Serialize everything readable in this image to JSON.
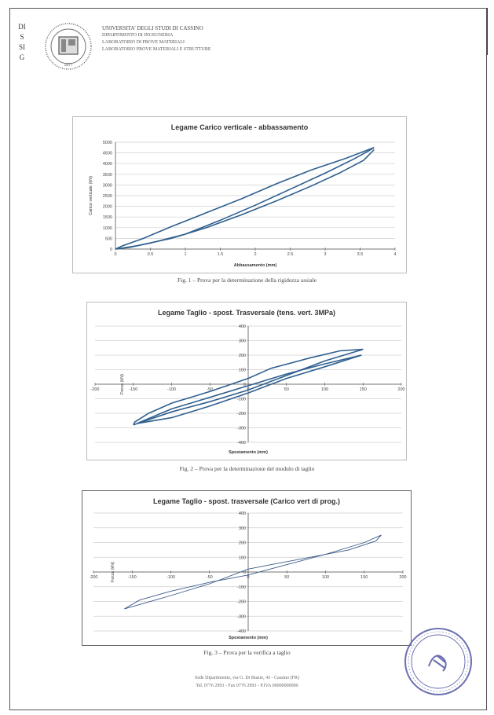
{
  "header": {
    "side_letters": [
      "DI",
      "S",
      "SI",
      "G"
    ],
    "logo_year": "1877",
    "lines": [
      "UNIVERSITA' DEGLI STUDI DI CASSINO",
      "DIPARTIMENTO DI INGEGNERIA",
      "LABORATORIO DI PROVE MATERIALI",
      "LABORATORIO PROVE MATERIALI E STRUTTURE"
    ]
  },
  "charts": [
    {
      "title": "Legame Carico verticale - abbassamento",
      "caption": "Fig. 1 – Prova per la determinazione della rigidezza assiale",
      "xlabel": "Abbassamento (mm)",
      "ylabel": "Carico verticale (kN)"
    },
    {
      "title": "Legame Taglio - spost. Trasversale (tens. vert. 3MPa)",
      "caption": "Fig. 2 – Prova per la determinazione del modulo di taglio",
      "xlabel": "Spostamento (mm)",
      "ylabel": "Forza (kN)"
    },
    {
      "title": "Legame Taglio - spost. trasversale (Carico vert di prog.)",
      "caption": "Fig. 3 – Prova per la verifica a taglio",
      "xlabel": "Spostamento (mm)",
      "ylabel": "Forza (kN)"
    }
  ],
  "footer": {
    "line1": "Sede Dipartimento, via G. Di Biasio, 43 - Cassino (FR)",
    "line2": "Tel. 0776 2993 - Fax 0776 2993 - P.IVA 00000000000"
  },
  "chart_data": [
    {
      "type": "line",
      "title": "Legame Carico verticale - abbassamento",
      "xlabel": "Abbassamento (mm)",
      "ylabel": "Carico verticale (kN)",
      "xlim": [
        0,
        4
      ],
      "ylim": [
        0,
        5000
      ],
      "xticks": [
        "0",
        "0.5",
        "1",
        "1.5",
        "2",
        "2.5",
        "3",
        "3.5",
        "4"
      ],
      "yticks": [
        "0",
        "500",
        "1000",
        "1500",
        "2000",
        "2500",
        "3000",
        "3500",
        "4000",
        "4500",
        "5000"
      ],
      "grid": true,
      "series": [
        {
          "values": [
            [
              0,
              0
            ],
            [
              0.2,
              80
            ],
            [
              0.5,
              280
            ],
            [
              1.0,
              700
            ],
            [
              1.5,
              1350
            ],
            [
              2.0,
              2050
            ],
            [
              2.5,
              2800
            ],
            [
              3.0,
              3550
            ],
            [
              3.4,
              4200
            ],
            [
              3.6,
              4550
            ],
            [
              3.7,
              4750
            ]
          ]
        },
        {
          "values": [
            [
              3.7,
              4750
            ],
            [
              3.3,
              4250
            ],
            [
              2.8,
              3700
            ],
            [
              2.3,
              3050
            ],
            [
              1.8,
              2350
            ],
            [
              1.3,
              1700
            ],
            [
              0.8,
              1050
            ],
            [
              0.4,
              500
            ],
            [
              0.1,
              150
            ],
            [
              0,
              0
            ]
          ]
        },
        {
          "values": [
            [
              0,
              0
            ],
            [
              0.3,
              150
            ],
            [
              0.8,
              500
            ],
            [
              1.3,
              1000
            ],
            [
              1.8,
              1600
            ],
            [
              2.3,
              2250
            ],
            [
              2.8,
              2950
            ],
            [
              3.2,
              3550
            ],
            [
              3.55,
              4150
            ],
            [
              3.7,
              4650
            ]
          ]
        }
      ]
    },
    {
      "type": "line",
      "title": "Legame Taglio - spost. Trasversale (tens. vert. 3MPa)",
      "xlabel": "Spostamento (mm)",
      "ylabel": "Forza (kN)",
      "xlim": [
        -200,
        200
      ],
      "ylim": [
        -400,
        400
      ],
      "xticks": [
        "-200",
        "-150",
        "-100",
        "-50",
        "0",
        "50",
        "100",
        "150",
        "200"
      ],
      "yticks": [
        "-400",
        "-300",
        "-200",
        "-100",
        "0",
        "100",
        "200",
        "300",
        "400"
      ],
      "grid": true,
      "series": [
        {
          "values": [
            [
              -150,
              -280
            ],
            [
              -100,
              -190
            ],
            [
              -50,
              -120
            ],
            [
              0,
              -40
            ],
            [
              50,
              60
            ],
            [
              100,
              160
            ],
            [
              150,
              240
            ]
          ]
        },
        {
          "values": [
            [
              150,
              240
            ],
            [
              120,
              230
            ],
            [
              80,
              180
            ],
            [
              30,
              110
            ],
            [
              0,
              40
            ],
            [
              -50,
              -50
            ],
            [
              -100,
              -130
            ],
            [
              -130,
              -200
            ],
            [
              -148,
              -260
            ],
            [
              -150,
              -280
            ]
          ]
        },
        {
          "values": [
            [
              -145,
              -270
            ],
            [
              -100,
              -170
            ],
            [
              -50,
              -90
            ],
            [
              0,
              -10
            ],
            [
              50,
              70
            ],
            [
              100,
              140
            ],
            [
              148,
              200
            ]
          ]
        },
        {
          "values": [
            [
              148,
              200
            ],
            [
              100,
              120
            ],
            [
              50,
              40
            ],
            [
              0,
              -60
            ],
            [
              -50,
              -150
            ],
            [
              -100,
              -230
            ],
            [
              -145,
              -270
            ]
          ]
        }
      ]
    },
    {
      "type": "line",
      "title": "Legame Taglio - spost. trasversale (Carico vert di prog.)",
      "xlabel": "Spostamento (mm)",
      "ylabel": "Forza (kN)",
      "xlim": [
        -200,
        200
      ],
      "ylim": [
        -400,
        400
      ],
      "xticks": [
        "-200",
        "-150",
        "-100",
        "-50",
        "0",
        "50",
        "100",
        "150",
        "200"
      ],
      "yticks": [
        "-400",
        "-300",
        "-200",
        "-100",
        "0",
        "100",
        "200",
        "300",
        "400"
      ],
      "grid": true,
      "series": [
        {
          "values": [
            [
              -160,
              -250
            ],
            [
              -140,
              -190
            ],
            [
              -100,
              -130
            ],
            [
              -50,
              -70
            ],
            [
              0,
              -20
            ],
            [
              50,
              50
            ],
            [
              100,
              120
            ],
            [
              150,
              200
            ],
            [
              172,
              250
            ]
          ]
        },
        {
          "values": [
            [
              172,
              250
            ],
            [
              165,
              210
            ],
            [
              130,
              150
            ],
            [
              80,
              100
            ],
            [
              30,
              50
            ],
            [
              0,
              20
            ],
            [
              -50,
              -80
            ],
            [
              -100,
              -160
            ],
            [
              -140,
              -220
            ],
            [
              -160,
              -250
            ]
          ]
        }
      ]
    }
  ]
}
